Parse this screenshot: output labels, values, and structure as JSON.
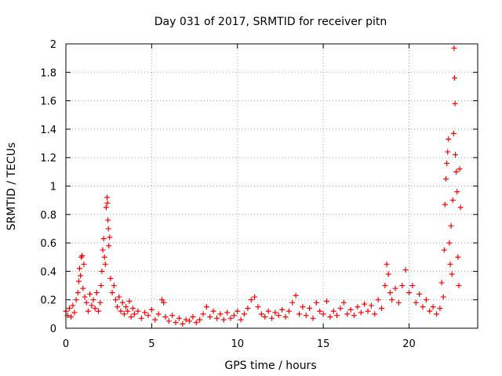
{
  "chart_data": {
    "type": "scatter",
    "title": "Day 031 of 2017, SRMTID for receiver pitn",
    "xlabel": "GPS time / hours",
    "ylabel": "SRMTID / TECUs",
    "xlim": [
      0,
      24
    ],
    "ylim": [
      0,
      2
    ],
    "xticks": [
      0,
      5,
      10,
      15,
      20
    ],
    "xtick_labels": [
      "0",
      "5",
      "10",
      "15",
      "20"
    ],
    "yticks": [
      0,
      0.2,
      0.4,
      0.6,
      0.8,
      1,
      1.2,
      1.4,
      1.6,
      1.8,
      2
    ],
    "ytick_labels": [
      "0",
      "0.2",
      "0.4",
      "0.6",
      "0.8",
      "1",
      "1.2",
      "1.4",
      "1.6",
      "1.8",
      "2"
    ],
    "grid": true,
    "marker": "plus",
    "color": "#ff0000",
    "series": [
      {
        "name": "SRMTID",
        "points": [
          [
            0.0,
            0.12
          ],
          [
            0.1,
            0.09
          ],
          [
            0.2,
            0.14
          ],
          [
            0.3,
            0.08
          ],
          [
            0.4,
            0.16
          ],
          [
            0.5,
            0.11
          ],
          [
            0.6,
            0.2
          ],
          [
            0.7,
            0.25
          ],
          [
            0.75,
            0.33
          ],
          [
            0.8,
            0.42
          ],
          [
            0.85,
            0.37
          ],
          [
            0.9,
            0.5
          ],
          [
            0.95,
            0.51
          ],
          [
            1.0,
            0.28
          ],
          [
            1.05,
            0.45
          ],
          [
            1.1,
            0.22
          ],
          [
            1.2,
            0.18
          ],
          [
            1.3,
            0.12
          ],
          [
            1.4,
            0.24
          ],
          [
            1.5,
            0.16
          ],
          [
            1.6,
            0.2
          ],
          [
            1.7,
            0.14
          ],
          [
            1.8,
            0.25
          ],
          [
            1.9,
            0.12
          ],
          [
            2.0,
            0.18
          ],
          [
            2.05,
            0.3
          ],
          [
            2.1,
            0.4
          ],
          [
            2.15,
            0.55
          ],
          [
            2.2,
            0.63
          ],
          [
            2.25,
            0.5
          ],
          [
            2.3,
            0.45
          ],
          [
            2.35,
            0.85
          ],
          [
            2.4,
            0.92
          ],
          [
            2.42,
            0.88
          ],
          [
            2.45,
            0.76
          ],
          [
            2.48,
            0.7
          ],
          [
            2.5,
            0.58
          ],
          [
            2.55,
            0.64
          ],
          [
            2.6,
            0.35
          ],
          [
            2.7,
            0.25
          ],
          [
            2.8,
            0.3
          ],
          [
            2.9,
            0.2
          ],
          [
            3.0,
            0.15
          ],
          [
            3.1,
            0.22
          ],
          [
            3.2,
            0.12
          ],
          [
            3.3,
            0.18
          ],
          [
            3.4,
            0.1
          ],
          [
            3.5,
            0.15
          ],
          [
            3.6,
            0.12
          ],
          [
            3.7,
            0.19
          ],
          [
            3.8,
            0.08
          ],
          [
            3.9,
            0.14
          ],
          [
            4.0,
            0.1
          ],
          [
            4.2,
            0.12
          ],
          [
            4.4,
            0.07
          ],
          [
            4.6,
            0.11
          ],
          [
            4.8,
            0.09
          ],
          [
            5.0,
            0.13
          ],
          [
            5.2,
            0.06
          ],
          [
            5.4,
            0.1
          ],
          [
            5.6,
            0.2
          ],
          [
            5.7,
            0.18
          ],
          [
            5.8,
            0.08
          ],
          [
            6.0,
            0.05
          ],
          [
            6.2,
            0.09
          ],
          [
            6.4,
            0.04
          ],
          [
            6.6,
            0.07
          ],
          [
            6.8,
            0.03
          ],
          [
            7.0,
            0.06
          ],
          [
            7.2,
            0.05
          ],
          [
            7.4,
            0.08
          ],
          [
            7.6,
            0.04
          ],
          [
            7.8,
            0.06
          ],
          [
            8.0,
            0.1
          ],
          [
            8.2,
            0.15
          ],
          [
            8.4,
            0.08
          ],
          [
            8.6,
            0.12
          ],
          [
            8.8,
            0.07
          ],
          [
            9.0,
            0.1
          ],
          [
            9.2,
            0.06
          ],
          [
            9.4,
            0.11
          ],
          [
            9.6,
            0.07
          ],
          [
            9.8,
            0.09
          ],
          [
            10.0,
            0.12
          ],
          [
            10.2,
            0.06
          ],
          [
            10.4,
            0.1
          ],
          [
            10.6,
            0.14
          ],
          [
            10.8,
            0.2
          ],
          [
            11.0,
            0.22
          ],
          [
            11.2,
            0.15
          ],
          [
            11.4,
            0.1
          ],
          [
            11.6,
            0.08
          ],
          [
            11.8,
            0.12
          ],
          [
            12.0,
            0.07
          ],
          [
            12.2,
            0.11
          ],
          [
            12.4,
            0.09
          ],
          [
            12.6,
            0.13
          ],
          [
            12.8,
            0.08
          ],
          [
            13.0,
            0.12
          ],
          [
            13.2,
            0.18
          ],
          [
            13.4,
            0.23
          ],
          [
            13.6,
            0.1
          ],
          [
            13.8,
            0.15
          ],
          [
            14.0,
            0.09
          ],
          [
            14.2,
            0.14
          ],
          [
            14.4,
            0.07
          ],
          [
            14.6,
            0.18
          ],
          [
            14.8,
            0.12
          ],
          [
            15.0,
            0.1
          ],
          [
            15.2,
            0.19
          ],
          [
            15.4,
            0.08
          ],
          [
            15.6,
            0.12
          ],
          [
            15.8,
            0.09
          ],
          [
            16.0,
            0.14
          ],
          [
            16.2,
            0.18
          ],
          [
            16.4,
            0.1
          ],
          [
            16.6,
            0.13
          ],
          [
            16.8,
            0.09
          ],
          [
            17.0,
            0.15
          ],
          [
            17.2,
            0.11
          ],
          [
            17.4,
            0.17
          ],
          [
            17.6,
            0.12
          ],
          [
            17.8,
            0.16
          ],
          [
            18.0,
            0.1
          ],
          [
            18.2,
            0.2
          ],
          [
            18.4,
            0.14
          ],
          [
            18.6,
            0.3
          ],
          [
            18.7,
            0.45
          ],
          [
            18.8,
            0.38
          ],
          [
            18.9,
            0.25
          ],
          [
            19.0,
            0.2
          ],
          [
            19.2,
            0.28
          ],
          [
            19.4,
            0.18
          ],
          [
            19.6,
            0.3
          ],
          [
            19.8,
            0.41
          ],
          [
            20.0,
            0.25
          ],
          [
            20.2,
            0.3
          ],
          [
            20.4,
            0.18
          ],
          [
            20.6,
            0.24
          ],
          [
            20.8,
            0.15
          ],
          [
            21.0,
            0.2
          ],
          [
            21.2,
            0.12
          ],
          [
            21.4,
            0.15
          ],
          [
            21.6,
            0.1
          ],
          [
            21.8,
            0.14
          ],
          [
            21.9,
            0.32
          ],
          [
            22.0,
            0.22
          ],
          [
            22.05,
            0.55
          ],
          [
            22.1,
            0.87
          ],
          [
            22.15,
            1.05
          ],
          [
            22.2,
            1.16
          ],
          [
            22.25,
            1.24
          ],
          [
            22.3,
            1.33
          ],
          [
            22.35,
            0.6
          ],
          [
            22.4,
            0.45
          ],
          [
            22.45,
            0.72
          ],
          [
            22.5,
            0.38
          ],
          [
            22.55,
            0.9
          ],
          [
            22.6,
            1.37
          ],
          [
            22.62,
            1.97
          ],
          [
            22.65,
            1.76
          ],
          [
            22.68,
            1.58
          ],
          [
            22.7,
            1.22
          ],
          [
            22.75,
            1.1
          ],
          [
            22.8,
            0.96
          ],
          [
            22.85,
            0.5
          ],
          [
            22.9,
            0.3
          ],
          [
            22.95,
            1.12
          ],
          [
            23.0,
            0.85
          ]
        ]
      }
    ]
  }
}
